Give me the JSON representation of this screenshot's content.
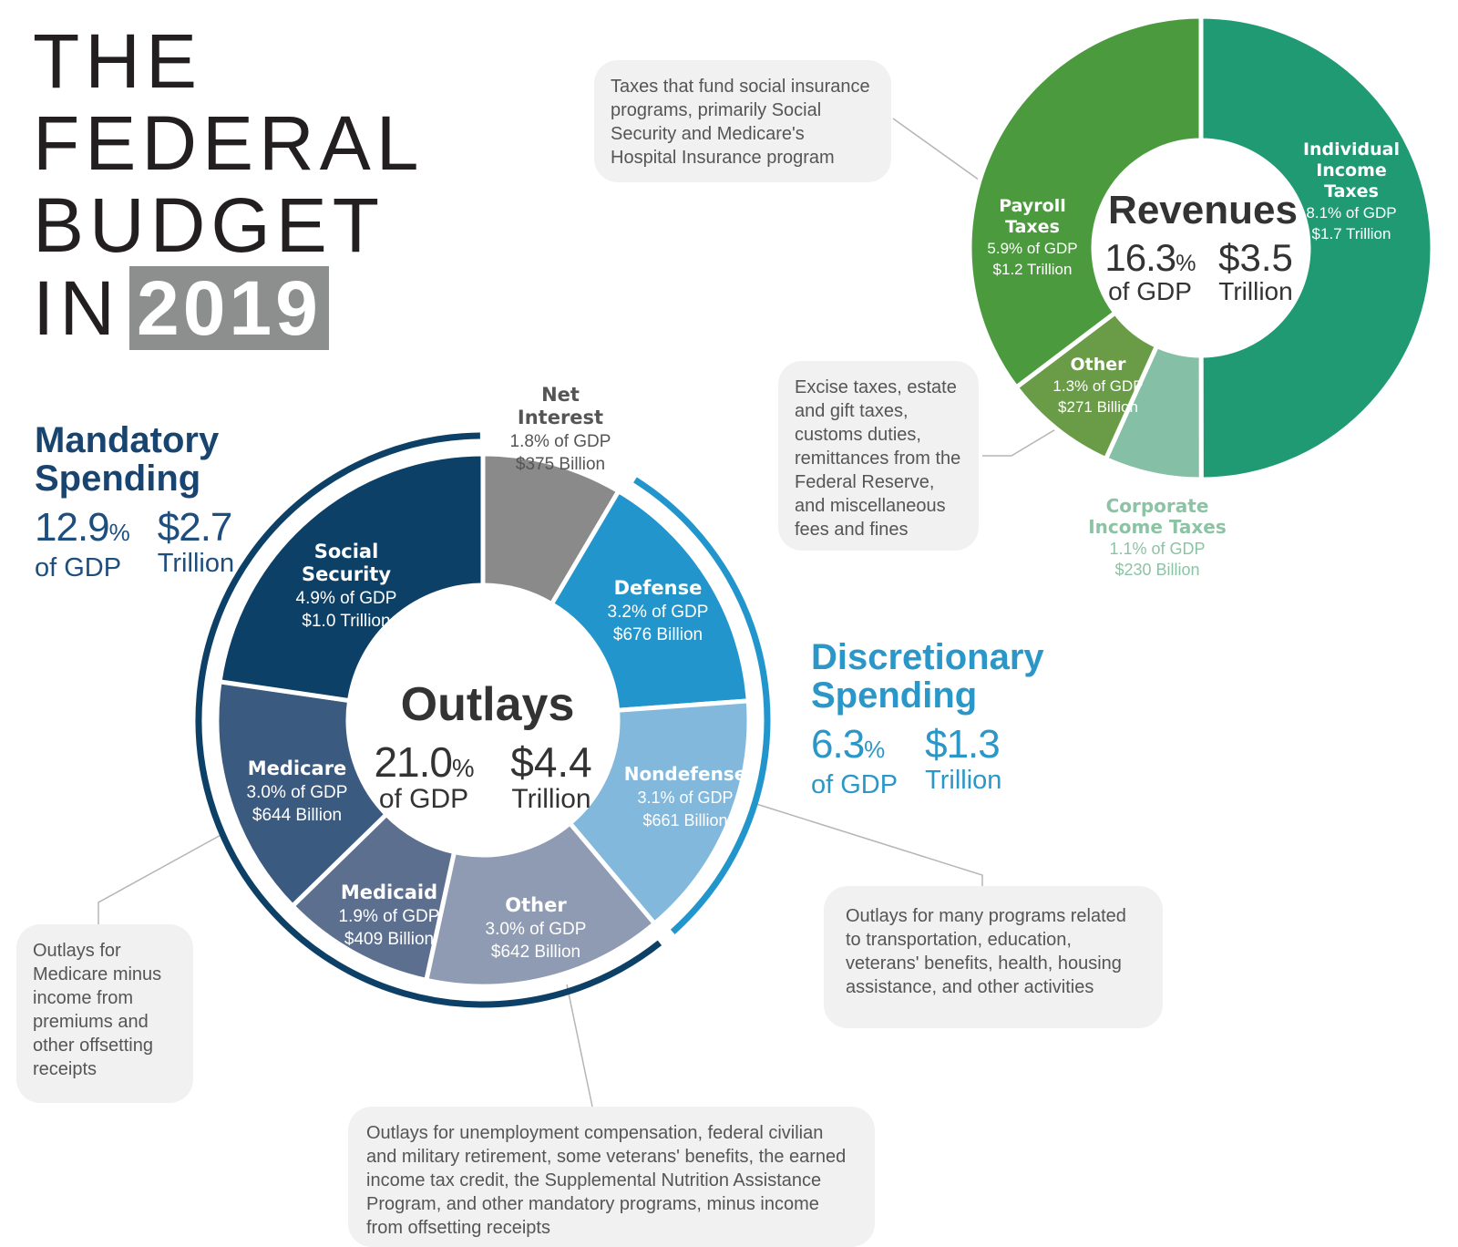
{
  "title": {
    "line1": "THE",
    "line2": "FEDERAL",
    "line3": "BUDGET",
    "line4": "IN",
    "year": "2019"
  },
  "mandatory": {
    "heading1": "Mandatory",
    "heading2": "Spending",
    "pct": "12.9",
    "pct_unit": "%",
    "pct_label": "of GDP",
    "amount": "$2.7",
    "amount_label": "Trillion",
    "color": "#1a4470"
  },
  "discretionary": {
    "heading1": "Discretionary",
    "heading2": "Spending",
    "pct": "6.3",
    "pct_unit": "%",
    "pct_label": "of GDP",
    "amount": "$1.3",
    "amount_label": "Trillion",
    "color": "#2a97c8"
  },
  "notes": {
    "payroll": "Taxes that fund social insurance programs, primarily Social Security and Medicare's Hospital Insurance program",
    "other_revenue": "Excise taxes, estate and gift taxes, customs duties, remittances from the Federal Reserve, and miscellaneous fees and fines",
    "medicare": "Outlays for Medicare minus income from premiums and other offsetting receipts",
    "nondefense": "Outlays for many programs related to transportation, education, veterans' benefits, health, housing assistance, and other activities",
    "other_outlays": "Outlays for unemployment compensation, federal civilian and military retirement, some veterans' benefits, the earned income tax credit, the Supplemental Nutrition Assistance Program, and other mandatory programs, minus income from offsetting receipts"
  },
  "chart_data": [
    {
      "type": "pie",
      "donut": true,
      "center": {
        "title": "Outlays",
        "pct": "21.0",
        "pct_unit": "%",
        "pct_label": "of GDP",
        "amount": "$4.4",
        "amount_label": "Trillion"
      },
      "slices": [
        {
          "name": "Net Interest",
          "name_lines": [
            "Net",
            "Interest"
          ],
          "pct_gdp": 1.8,
          "pct_text": "1.8% of GDP",
          "amount_text": "$375 Billion",
          "value_billion": 375,
          "color": "#8a8a8a",
          "label_color": "#555555"
        },
        {
          "name": "Defense",
          "name_lines": [
            "Defense"
          ],
          "pct_gdp": 3.2,
          "pct_text": "3.2% of GDP",
          "amount_text": "$676 Billion",
          "value_billion": 676,
          "color": "#2296cc",
          "label_color": "#ffffff"
        },
        {
          "name": "Nondefense",
          "name_lines": [
            "Nondefense"
          ],
          "pct_gdp": 3.1,
          "pct_text": "3.1% of GDP",
          "amount_text": "$661 Billion",
          "value_billion": 661,
          "color": "#82b8db",
          "label_color": "#ffffff"
        },
        {
          "name": "Other",
          "name_lines": [
            "Other"
          ],
          "pct_gdp": 3.0,
          "pct_text": "3.0% of GDP",
          "amount_text": "$642 Billion",
          "value_billion": 642,
          "color": "#8e9bb3",
          "label_color": "#ffffff"
        },
        {
          "name": "Medicaid",
          "name_lines": [
            "Medicaid"
          ],
          "pct_gdp": 1.9,
          "pct_text": "1.9% of GDP",
          "amount_text": "$409 Billion",
          "value_billion": 409,
          "color": "#5c6f8f",
          "label_color": "#ffffff"
        },
        {
          "name": "Medicare",
          "name_lines": [
            "Medicare"
          ],
          "pct_gdp": 3.0,
          "pct_text": "3.0% of GDP",
          "amount_text": "$644 Billion",
          "value_billion": 644,
          "color": "#3b5a80",
          "label_color": "#ffffff"
        },
        {
          "name": "Social Security",
          "name_lines": [
            "Social",
            "Security"
          ],
          "pct_gdp": 4.9,
          "pct_text": "4.9% of GDP",
          "amount_text": "$1.0 Trillion",
          "value_billion": 1000,
          "color": "#0d4067",
          "label_color": "#ffffff"
        }
      ]
    },
    {
      "type": "pie",
      "donut": true,
      "center": {
        "title": "Revenues",
        "pct": "16.3",
        "pct_unit": "%",
        "pct_label": "of GDP",
        "amount": "$3.5",
        "amount_label": "Trillion"
      },
      "slices": [
        {
          "name": "Individual Income Taxes",
          "name_lines": [
            "Individual",
            "Income",
            "Taxes"
          ],
          "pct_gdp": 8.1,
          "pct_text": "8.1% of GDP",
          "amount_text": "$1.7 Trillion",
          "value_billion": 1700,
          "color": "#1f9a73",
          "label_color": "#ffffff"
        },
        {
          "name": "Corporate Income Taxes",
          "name_lines": [
            "Corporate",
            "Income Taxes"
          ],
          "pct_gdp": 1.1,
          "pct_text": "1.1% of GDP",
          "amount_text": "$230 Billion",
          "value_billion": 230,
          "color": "#85bfa5",
          "label_color": "#8cc3a5"
        },
        {
          "name": "Other",
          "name_lines": [
            "Other"
          ],
          "pct_gdp": 1.3,
          "pct_text": "1.3% of GDP",
          "amount_text": "$271 Billion",
          "value_billion": 271,
          "color": "#6a9c48",
          "label_color": "#ffffff"
        },
        {
          "name": "Payroll Taxes",
          "name_lines": [
            "Payroll",
            "Taxes"
          ],
          "pct_gdp": 5.9,
          "pct_text": "5.9% of GDP",
          "amount_text": "$1.2 Trillion",
          "value_billion": 1200,
          "color": "#4b9a3d",
          "label_color": "#ffffff"
        }
      ]
    }
  ]
}
